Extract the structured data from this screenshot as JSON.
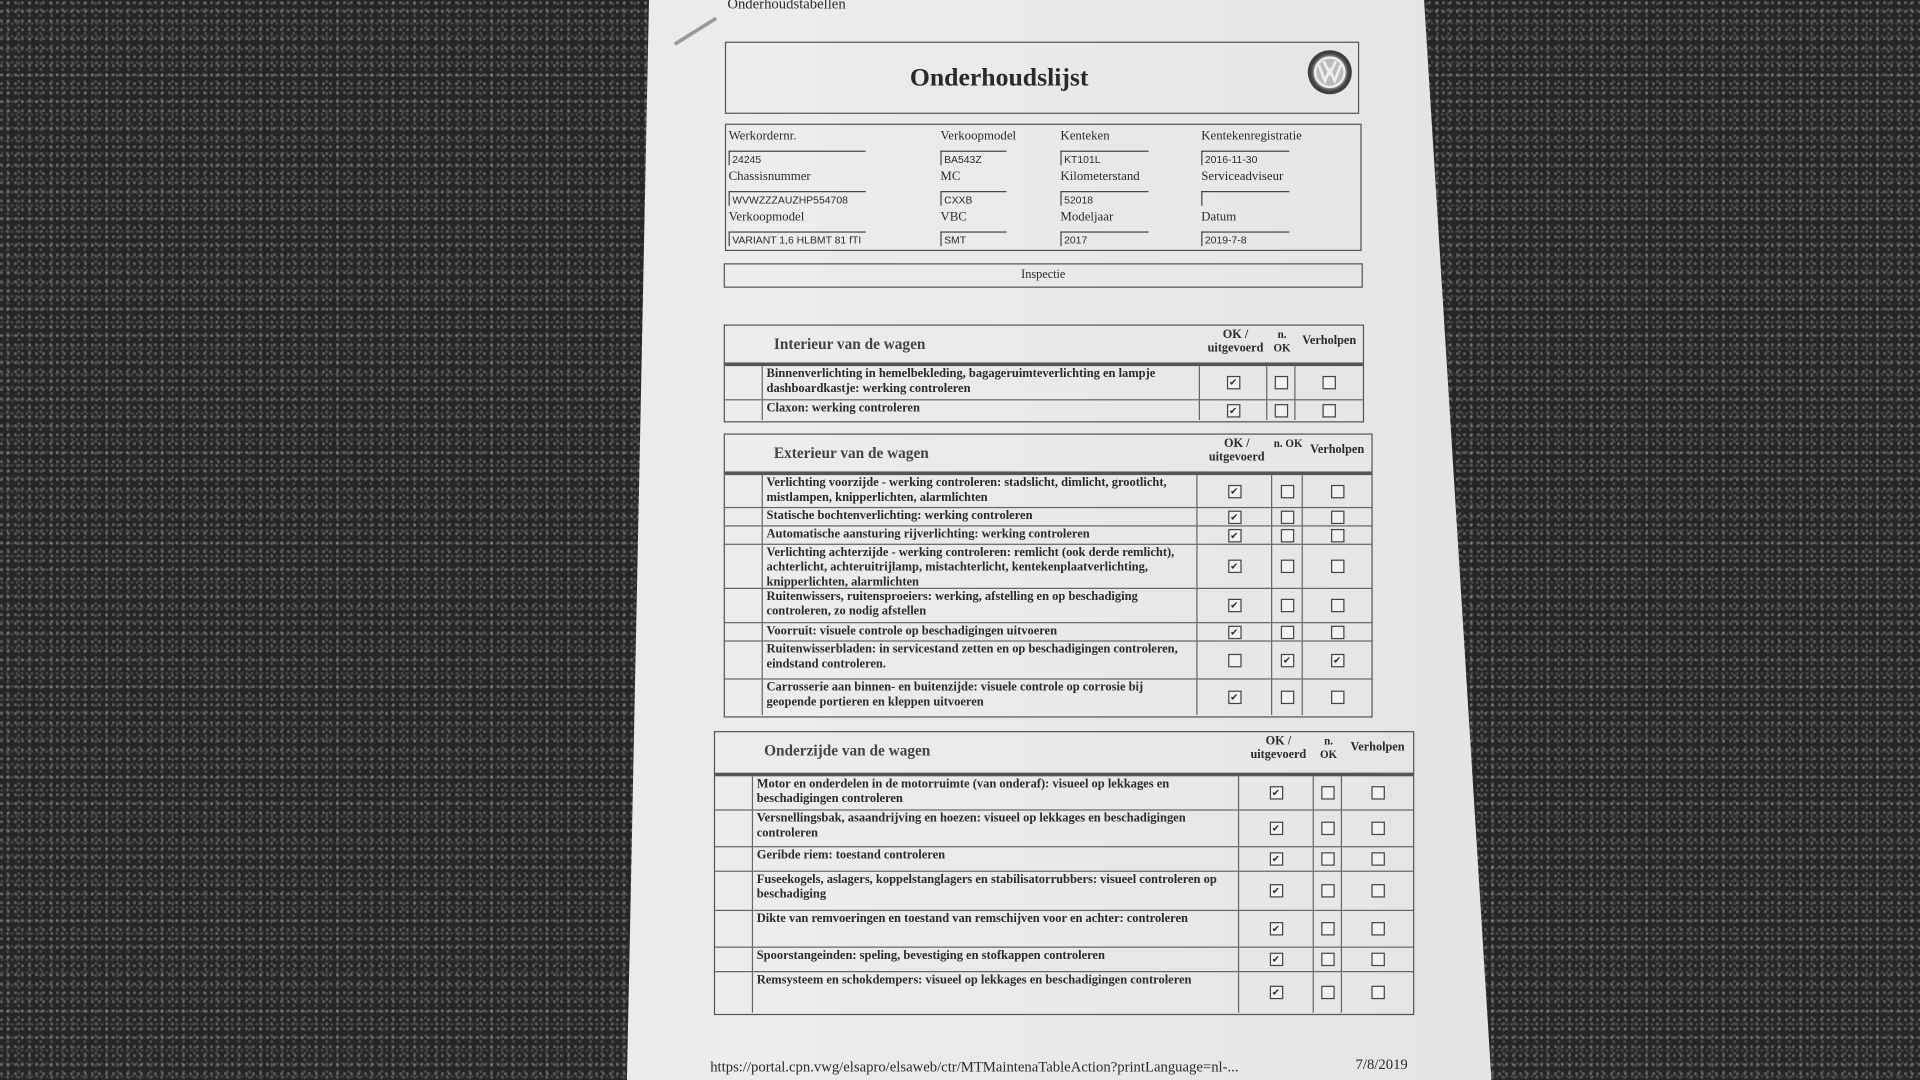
{
  "header": {
    "top_label": "Onderhoudstabellen",
    "title": "Onderhoudslijst",
    "logo": "VW"
  },
  "fields": [
    {
      "label": "Werkordernr.",
      "value": "24245"
    },
    {
      "label": "Verkoopmodel",
      "value": "BA543Z"
    },
    {
      "label": "Kenteken",
      "value": "KT101L"
    },
    {
      "label": "Kentekenregistratie",
      "value": "2016-11-30"
    },
    {
      "label": "Chassisnummer",
      "value": "WVWZZZAUZHP554708"
    },
    {
      "label": "MC",
      "value": "CXXB"
    },
    {
      "label": "Kilometerstand",
      "value": "52018"
    },
    {
      "label": "Serviceadviseur",
      "value": ""
    },
    {
      "label": "Verkoopmodel",
      "value": "VARIANT 1,6 HLBMT 81 fTI"
    },
    {
      "label": "VBC",
      "value": "SMT"
    },
    {
      "label": "Modeljaar",
      "value": "2017"
    },
    {
      "label": "Datum",
      "value": "2019-7-8"
    }
  ],
  "inspection_label": "Inspectie",
  "columns": {
    "ok": "OK / uitgevoerd",
    "nok": "n. OK",
    "fixed": "Verholpen"
  },
  "sections": [
    {
      "title": "Interieur van de wagen",
      "rows": [
        {
          "text": "Binnenverlichting in hemelbekleding, bagageruimteverlichting en lampje dashboardkastje: werking controleren",
          "ok": true,
          "nok": false,
          "fixed": false
        },
        {
          "text": "Claxon: werking controleren",
          "ok": true,
          "nok": false,
          "fixed": false
        }
      ]
    },
    {
      "title": "Exterieur van de wagen",
      "rows": [
        {
          "text": "Verlichting voorzijde - werking controleren: stadslicht, dimlicht, grootlicht, mistlampen, knipperlichten, alarmlichten",
          "ok": true,
          "nok": false,
          "fixed": false
        },
        {
          "text": "Statische bochtenverlichting: werking controleren",
          "ok": true,
          "nok": false,
          "fixed": false
        },
        {
          "text": "Automatische aansturing rijverlichting: werking controleren",
          "ok": true,
          "nok": false,
          "fixed": false
        },
        {
          "text": "Verlichting achterzijde - werking controleren: remlicht (ook derde remlicht), achterlicht, achteruitrijlamp, mistachterlicht, kentekenplaatverlichting, knipperlichten, alarmlichten",
          "ok": true,
          "nok": false,
          "fixed": false
        },
        {
          "text": "Ruitenwissers, ruitensproeiers: werking, afstelling en op beschadiging controleren, zo nodig afstellen",
          "ok": true,
          "nok": false,
          "fixed": false
        },
        {
          "text": "Voorruit: visuele controle op beschadigingen uitvoeren",
          "ok": true,
          "nok": false,
          "fixed": false
        },
        {
          "text": "Ruitenwisserbladen: in servicestand zetten en op beschadigingen controleren, eindstand controleren.",
          "ok": false,
          "nok": true,
          "fixed": true
        },
        {
          "text": "Carrosserie aan binnen- en buitenzijde: visuele controle op corrosie bij geopende portieren en kleppen uitvoeren",
          "ok": true,
          "nok": false,
          "fixed": false
        }
      ]
    },
    {
      "title": "Onderzijde van de wagen",
      "rows": [
        {
          "text": "Motor en onderdelen in de motorruimte (van onderaf): visueel op lekkages en beschadigingen controleren",
          "ok": true,
          "nok": false,
          "fixed": false
        },
        {
          "text": "Versnellingsbak, asaandrijving en hoezen: visueel op lekkages en beschadigingen controleren",
          "ok": true,
          "nok": false,
          "fixed": false
        },
        {
          "text": "Geribde riem: toestand controleren",
          "ok": true,
          "nok": false,
          "fixed": false
        },
        {
          "text": "Fuseekogels, aslagers, koppelstanglagers en stabilisatorrubbers: visueel controleren op beschadiging",
          "ok": true,
          "nok": false,
          "fixed": false
        },
        {
          "text": "Dikte van remvoeringen en toestand van remschijven voor en achter: controleren",
          "ok": true,
          "nok": false,
          "fixed": false
        },
        {
          "text": "Spoorstangeinden: speling, bevestiging en stofkappen controleren",
          "ok": true,
          "nok": false,
          "fixed": false
        },
        {
          "text": "Remsysteem en schokdempers: visueel op lekkages en beschadigingen controleren",
          "ok": true,
          "nok": false,
          "fixed": false
        }
      ]
    }
  ],
  "footer": {
    "url": "https://portal.cpn.vwg/elsapro/elsaweb/ctr/MTMaintenaTableAction?printLanguage=nl-...",
    "date": "7/8/2019"
  }
}
